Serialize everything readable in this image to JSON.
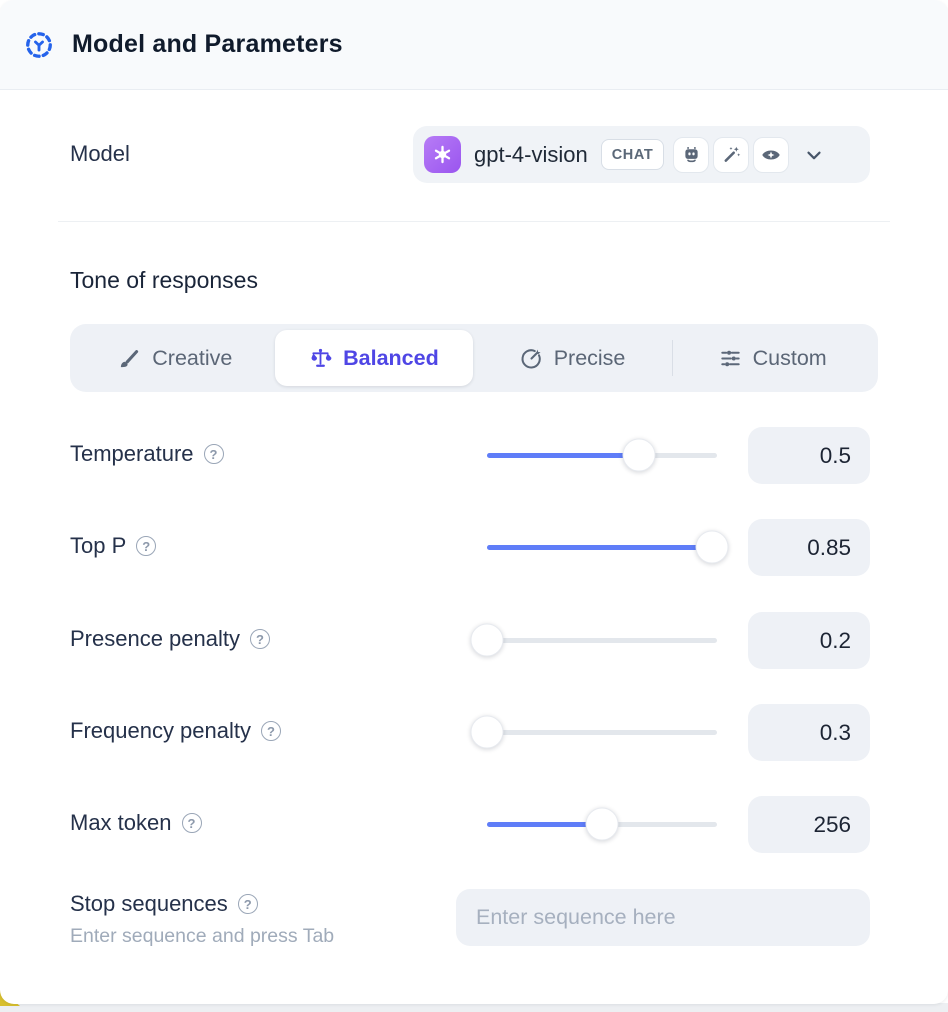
{
  "header": {
    "title": "Model and Parameters",
    "icon": "model-hub-icon"
  },
  "model_row": {
    "label": "Model",
    "provider_icon": "openai-logo",
    "selected_model": "gpt-4-vision",
    "type_badge": "CHAT",
    "capability_icons": [
      "robot-icon",
      "magic-wand-icon",
      "vision-eye-icon"
    ],
    "dropdown_icon": "chevron-down-icon"
  },
  "tone": {
    "heading": "Tone of responses",
    "selected": "Balanced",
    "options": [
      {
        "label": "Creative",
        "icon": "brush-icon"
      },
      {
        "label": "Balanced",
        "icon": "scales-icon"
      },
      {
        "label": "Precise",
        "icon": "target-icon"
      },
      {
        "label": "Custom",
        "icon": "sliders-icon"
      }
    ]
  },
  "params": [
    {
      "label": "Temperature",
      "value": "0.5",
      "percent": 66,
      "help_icon": "question-circle-icon"
    },
    {
      "label": "Top P",
      "value": "0.85",
      "percent": 98,
      "help_icon": "question-circle-icon"
    },
    {
      "label": "Presence penalty",
      "value": "0.2",
      "percent": 0,
      "help_icon": "question-circle-icon"
    },
    {
      "label": "Frequency penalty",
      "value": "0.3",
      "percent": 0,
      "help_icon": "question-circle-icon"
    },
    {
      "label": "Max token",
      "value": "256",
      "percent": 50,
      "help_icon": "question-circle-icon"
    }
  ],
  "stop_sequences": {
    "label": "Stop sequences",
    "hint": "Enter sequence and press Tab",
    "placeholder": "Enter sequence here",
    "help_icon": "question-circle-icon"
  },
  "ui": {
    "help_glyph": "?"
  },
  "colors": {
    "accent_blue": "#2563eb",
    "selected_indigo": "#4f46e5",
    "slider_blue": "#5f7df8",
    "openai_purple": "#9a55ef",
    "header_bg": "#f8fafc",
    "pill_bg": "#eef1f6",
    "corner_yellow": "#d8bf2e"
  }
}
